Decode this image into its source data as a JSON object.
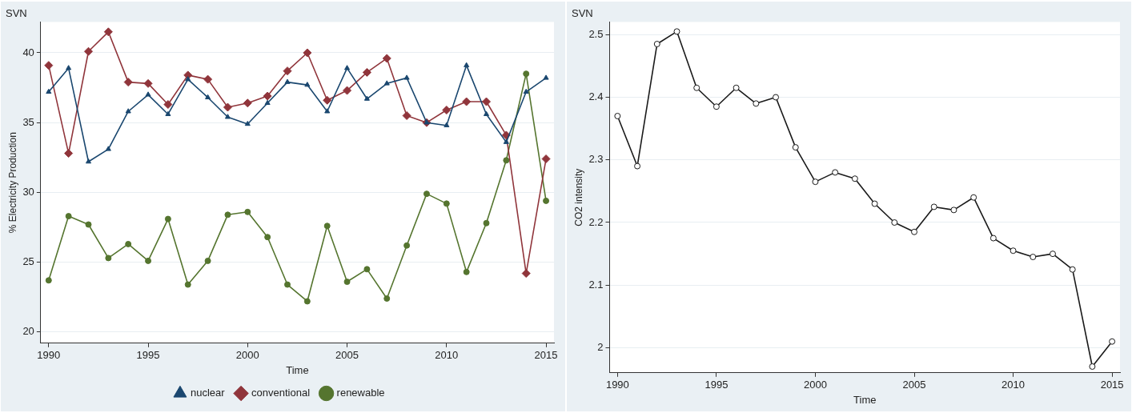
{
  "chart_data": [
    {
      "type": "line",
      "title": "SVN",
      "xlabel": "Time",
      "ylabel": "% Electricity Production",
      "x": [
        1990,
        1991,
        1992,
        1993,
        1994,
        1995,
        1996,
        1997,
        1998,
        1999,
        2000,
        2001,
        2002,
        2003,
        2004,
        2005,
        2006,
        2007,
        2008,
        2009,
        2010,
        2011,
        2012,
        2013,
        2014,
        2015
      ],
      "series": [
        {
          "name": "nuclear",
          "color": "#1a476f",
          "marker": "triangle",
          "values": [
            37.2,
            38.9,
            32.2,
            33.1,
            35.8,
            37.0,
            35.6,
            38.1,
            36.8,
            35.4,
            34.9,
            36.4,
            37.9,
            37.7,
            35.8,
            38.9,
            36.7,
            37.8,
            38.2,
            35.0,
            34.8,
            39.1,
            35.6,
            33.6,
            37.2,
            38.2
          ]
        },
        {
          "name": "conventional",
          "color": "#90353b",
          "marker": "diamond",
          "values": [
            39.1,
            32.8,
            40.1,
            41.5,
            37.9,
            37.8,
            36.3,
            38.4,
            38.1,
            36.1,
            36.4,
            36.9,
            38.7,
            40.0,
            36.6,
            37.3,
            38.6,
            39.6,
            35.5,
            35.0,
            35.9,
            36.5,
            36.5,
            34.1,
            24.2,
            32.4
          ]
        },
        {
          "name": "renewable",
          "color": "#55752f",
          "marker": "circle",
          "values": [
            23.7,
            28.3,
            27.7,
            25.3,
            26.3,
            25.1,
            28.1,
            23.4,
            25.1,
            28.4,
            28.6,
            26.8,
            23.4,
            22.2,
            27.6,
            23.6,
            24.5,
            22.4,
            26.2,
            29.9,
            29.2,
            24.3,
            27.8,
            32.3,
            38.5,
            29.4
          ]
        }
      ],
      "xlim": [
        1989.6,
        2015.4
      ],
      "xticks": [
        1990,
        1995,
        2000,
        2005,
        2010,
        2015
      ],
      "ylim": [
        19.2,
        42.2
      ],
      "yticks": [
        20,
        25,
        30,
        35,
        40
      ],
      "grid": "y",
      "legend": "bottom",
      "line_style": "solid"
    },
    {
      "type": "line",
      "title": "SVN",
      "xlabel": "Time",
      "ylabel": "CO2 intensity",
      "x": [
        1990,
        1991,
        1992,
        1993,
        1994,
        1995,
        1996,
        1997,
        1998,
        1999,
        2000,
        2001,
        2002,
        2003,
        2004,
        2005,
        2006,
        2007,
        2008,
        2009,
        2010,
        2011,
        2012,
        2013,
        2014,
        2015
      ],
      "series": [
        {
          "color": "#1a1a1a",
          "marker": "circle",
          "values": [
            2.37,
            2.29,
            2.485,
            2.505,
            2.415,
            2.385,
            2.415,
            2.39,
            2.4,
            2.32,
            2.265,
            2.28,
            2.27,
            2.23,
            2.2,
            2.185,
            2.225,
            2.22,
            2.24,
            2.175,
            2.155,
            2.145,
            2.15,
            2.125,
            1.97,
            2.01
          ]
        }
      ],
      "xlim": [
        1989.6,
        2015.4
      ],
      "xticks": [
        1990,
        1995,
        2000,
        2005,
        2010,
        2015
      ],
      "ylim": [
        1.96,
        2.52
      ],
      "yticks": [
        2,
        2.1,
        2.2,
        2.3,
        2.4,
        2.5
      ],
      "grid": "y",
      "legend": false,
      "line_style": "solid"
    }
  ]
}
